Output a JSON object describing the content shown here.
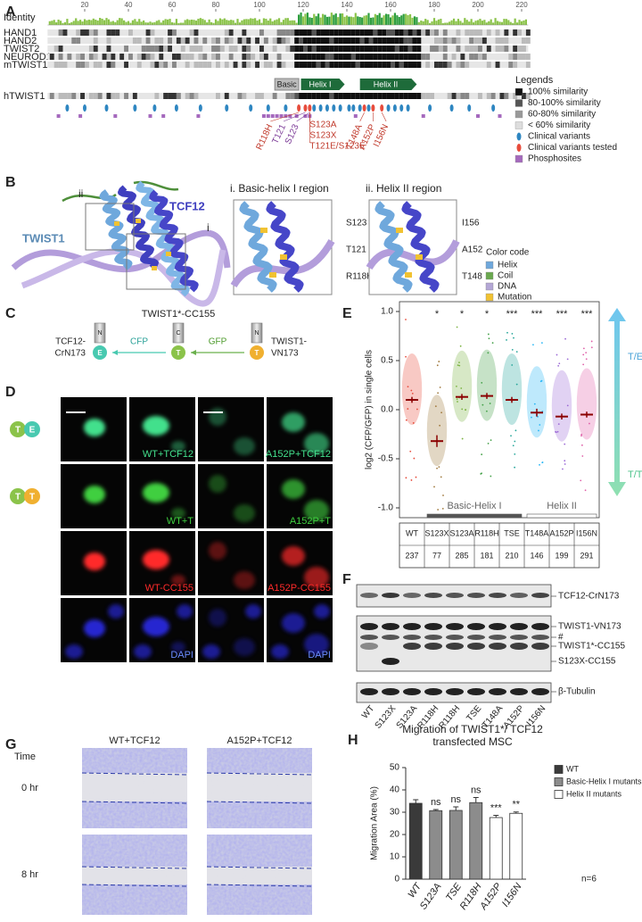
{
  "panel_labels": [
    "A",
    "B",
    "C",
    "D",
    "E",
    "F",
    "G",
    "H"
  ],
  "alignment": {
    "ruler": [
      20,
      40,
      60,
      80,
      100,
      120,
      140,
      160,
      180,
      200,
      220
    ],
    "identity_label": "Identity",
    "sequences": [
      "HAND1",
      "HAND2",
      "TWIST2",
      "NEUROD1",
      "mTWIST1"
    ],
    "reference": "hTWIST1",
    "domains": [
      "Basic",
      "Helix I",
      "Helix II"
    ],
    "variants_tested": [
      "R118H",
      "T121",
      "S123",
      "S123A",
      "S123X",
      "T121E/S123E",
      "T148A",
      "A152P",
      "I156N"
    ],
    "variant_colors": [
      "#c0392b",
      "#7d3c98",
      "#7d3c98",
      "#c0392b",
      "#c0392b",
      "#c0392b",
      "#c0392b",
      "#c0392b",
      "#c0392b"
    ],
    "legend_title": "Legends",
    "legend": [
      {
        "label": "100% similarity",
        "color": "#111111"
      },
      {
        "label": "80-100% similarity",
        "color": "#555555"
      },
      {
        "label": "60-80% similarity",
        "color": "#999999"
      },
      {
        "label": "< 60% similarity",
        "color": "#dddddd"
      },
      {
        "label": "Clinical variants",
        "color": "#2e86c1"
      },
      {
        "label": "Clinical variants tested",
        "color": "#e74c3c"
      },
      {
        "label": "Phosphosites",
        "color": "#a569bd"
      }
    ]
  },
  "structure": {
    "twist1": "TWIST1",
    "tcf12": "TCF12",
    "box_ii": "ii",
    "box_i": "i",
    "insets": [
      {
        "title": "i. Basic-helix I region",
        "residues": [
          "S123",
          "T121",
          "R118H"
        ]
      },
      {
        "title": "ii. Helix II region",
        "residues": [
          "I156",
          "A152",
          "T148"
        ]
      }
    ],
    "color_code_title": "Color code",
    "color_code": [
      {
        "label": "Helix",
        "color": "#6fa8dc"
      },
      {
        "label": "Coil",
        "color": "#6aa84f"
      },
      {
        "label": "DNA",
        "color": "#b4a7d6"
      },
      {
        "label": "Mutation",
        "color": "#f1c232"
      }
    ]
  },
  "bret": {
    "title": "TWIST1*-CC155",
    "left": [
      "TCF12-",
      "CrN173"
    ],
    "right": [
      "TWIST1-",
      "VN173"
    ],
    "donor": "CFP",
    "acceptor": "GFP",
    "tags": [
      "N",
      "C",
      "N"
    ],
    "proteins": [
      "E",
      "T",
      "T"
    ]
  },
  "imaging": {
    "pair_labels": [
      [
        "T",
        "E"
      ],
      [
        "T",
        "T"
      ]
    ],
    "captions": [
      [
        "WT+TCF12",
        "A152P+TCF12"
      ],
      [
        "WT+T",
        "A152P+T"
      ],
      [
        "WT-CC155",
        "A152P-CC155"
      ],
      [
        "DAPI",
        "DAPI"
      ]
    ]
  },
  "blot": {
    "lanes": [
      "WT",
      "S123X",
      "S123A",
      "R118H",
      "R118H",
      "TSE",
      "T148A",
      "A152P",
      "I156N"
    ],
    "bands": [
      "TCF12-CrN173",
      "TWIST1-VN173",
      "#",
      "TWIST1*-CC155",
      "S123X-CC155",
      "β-Tubulin"
    ]
  },
  "migration_assay": {
    "time_label": "Time",
    "conditions": [
      "WT+TCF12",
      "A152P+TCF12"
    ],
    "times": [
      "0 hr",
      "8 hr"
    ]
  },
  "chart_data": [
    {
      "type": "dot",
      "ylabel": "log2 (CFP/GFP) in single cells",
      "categories": [
        "WT",
        "S123X",
        "S123A",
        "R118H",
        "TSE",
        "T148A",
        "A152P",
        "I156N"
      ],
      "values": [
        0.1,
        -0.32,
        0.13,
        0.14,
        0.1,
        -0.03,
        -0.07,
        -0.05
      ],
      "errors": [
        0.03,
        0.06,
        0.03,
        0.03,
        0.03,
        0.04,
        0.03,
        0.03
      ],
      "colors": [
        "#e74c3c",
        "#a0793d",
        "#7cb342",
        "#43a047",
        "#26a69a",
        "#29b6f6",
        "#9c6ad6",
        "#e05fa8"
      ],
      "significance": [
        null,
        "*",
        "*",
        "*",
        "***",
        "***",
        "***",
        "***"
      ],
      "counts": [
        237,
        77,
        285,
        181,
        210,
        146,
        199,
        291
      ],
      "groups": [
        "Basic-Helix I",
        "Helix II"
      ],
      "direction_labels": [
        "T/E",
        "T/T"
      ],
      "ylim": [
        -1.1,
        1.1
      ],
      "yticks": [
        {
          "value": 1,
          "label": "1.0"
        },
        {
          "value": 0.5,
          "label": "0.5"
        },
        {
          "value": 0,
          "label": "0.0"
        },
        {
          "value": -0.5,
          "label": "-0.5"
        },
        {
          "value": -1,
          "label": "-1.0"
        }
      ]
    },
    {
      "type": "bar",
      "title": [
        "Migration of TWIST1*/ TCF12",
        "transfected MSC"
      ],
      "ylabel": "Migration Area (%)",
      "categories": [
        "WT",
        "S123A",
        "TSE",
        "R118H",
        "A152P",
        "I156N"
      ],
      "values": [
        34,
        30.7,
        30.8,
        34.3,
        27.6,
        29.5
      ],
      "errors": [
        1.6,
        0.5,
        1.6,
        2.3,
        1,
        0.6
      ],
      "colors": [
        "#3a3a3a",
        "#8c8c8c",
        "#8c8c8c",
        "#8c8c8c",
        "#ffffff",
        "#ffffff"
      ],
      "significance": [
        null,
        "ns",
        "ns",
        "ns",
        "***",
        "**"
      ],
      "legend": [
        {
          "name": "WT",
          "color": "#3a3a3a"
        },
        {
          "name": "Basic-Helix I mutants",
          "color": "#8c8c8c"
        },
        {
          "name": "Helix II mutants",
          "color": "#ffffff"
        }
      ],
      "note": "n=6",
      "ylim": [
        0,
        50
      ],
      "yticks": [
        0,
        10,
        20,
        30,
        40,
        50
      ]
    }
  ]
}
